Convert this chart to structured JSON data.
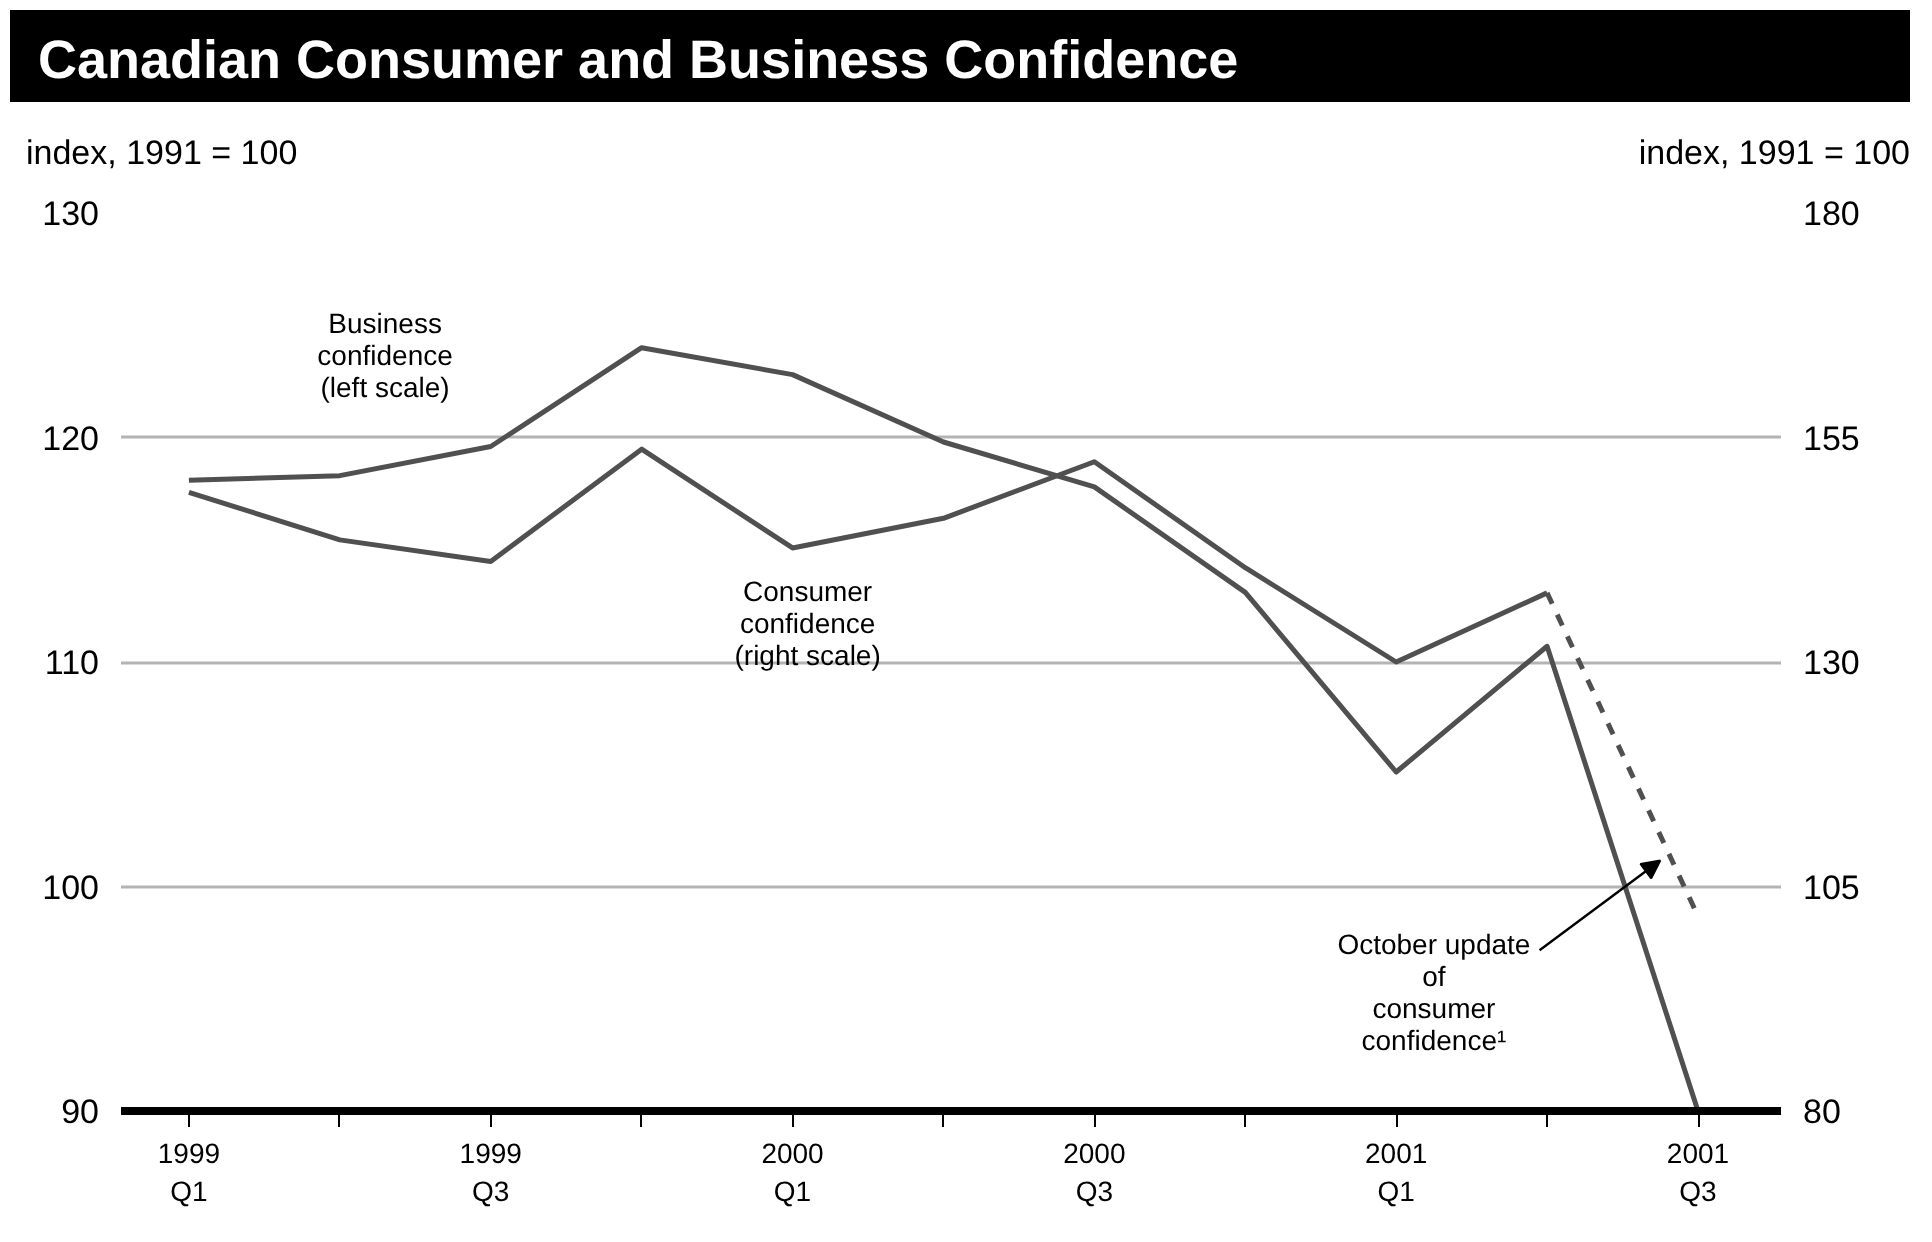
{
  "chart_data": {
    "type": "line",
    "title": "Canadian Consumer and Business Confidence",
    "ylabel": "index, 1991 = 100",
    "y2label": "index, 1991 = 100",
    "categories": [
      "1999\nQ1",
      null,
      "1999\nQ3",
      null,
      "2000\nQ1",
      null,
      "2000\nQ3",
      null,
      "2001\nQ1",
      null,
      "2001\nQ3"
    ],
    "series": [
      {
        "name": "Business\nconfidence\n(left scale)",
        "color": "#505050",
        "values": [
          118.1,
          118.3,
          119.6,
          124.0,
          122.8,
          119.8,
          117.8,
          113.1,
          105.1,
          110.7,
          90
        ]
      },
      {
        "name": "Consumer\nconfidence\n(right scale)",
        "color": "#505050",
        "axis": "y2",
        "values": [
          148.9,
          143.6,
          141.2,
          153.7,
          142.7,
          146.0,
          152.3,
          140.5,
          130.0,
          137.7,
          null
        ]
      },
      {
        "color": "#505050",
        "axis": "y2",
        "line_style": "dashed",
        "values": [
          null,
          null,
          null,
          null,
          null,
          null,
          null,
          null,
          null,
          137.7,
          101.7
        ]
      }
    ],
    "ylim": [
      90,
      130
    ],
    "yticks": [
      90,
      100,
      110,
      120,
      130
    ],
    "y2lim": [
      80,
      180
    ],
    "y2ticks": [
      80,
      105,
      130,
      155,
      180
    ],
    "grid": "y",
    "line_style": "solid",
    "annotations": [
      "October update\nof\nconsumer\nconfidence¹"
    ]
  }
}
